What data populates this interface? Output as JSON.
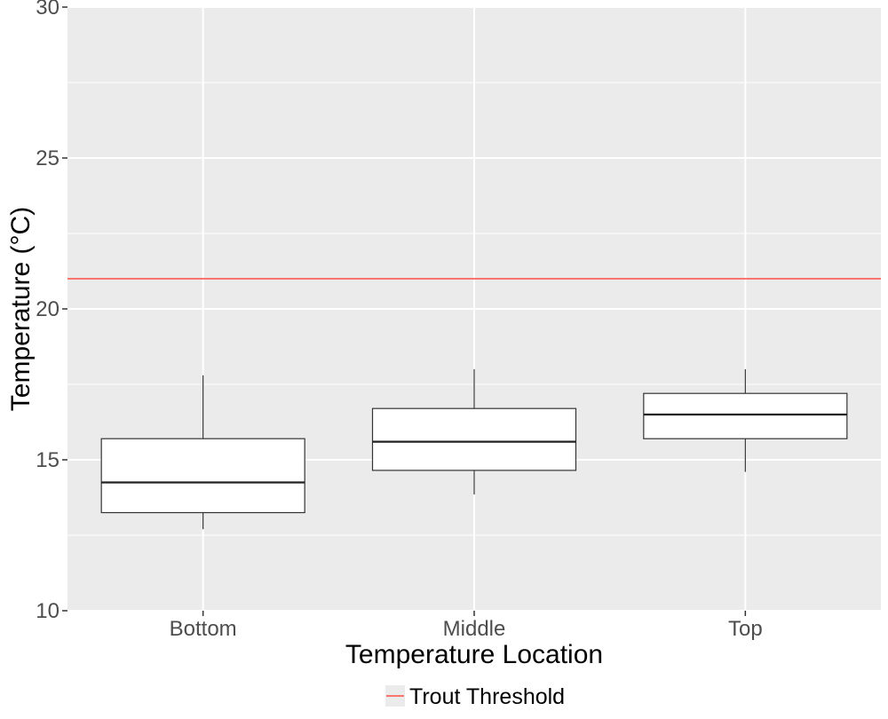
{
  "chart_data": {
    "type": "boxplot",
    "title": "",
    "xlabel": "Temperature Location",
    "ylabel": "Temperature (°C)",
    "ylim": [
      10,
      30
    ],
    "y_ticks": [
      "10",
      "15",
      "20",
      "25",
      "30"
    ],
    "grid": true,
    "categories": [
      "Bottom",
      "Middle",
      "Top"
    ],
    "boxes": [
      {
        "category": "Bottom",
        "whisker_low": 12.7,
        "q1": 13.25,
        "median": 14.25,
        "q3": 15.7,
        "whisker_high": 17.8
      },
      {
        "category": "Middle",
        "whisker_low": 13.85,
        "q1": 14.65,
        "median": 15.6,
        "q3": 16.7,
        "whisker_high": 18.0
      },
      {
        "category": "Top",
        "whisker_low": 14.6,
        "q1": 15.7,
        "median": 16.5,
        "q3": 17.2,
        "whisker_high": 18.0
      }
    ],
    "reference_line": {
      "name": "Trout Threshold",
      "y": 21,
      "color": "#F8766D"
    },
    "legend": {
      "position": "bottom",
      "items": [
        "Trout Threshold"
      ]
    },
    "colors": {
      "panel": "#EBEBEB",
      "grid": "#FFFFFF",
      "box_fill": "#FFFFFF",
      "box_stroke": "#333333"
    }
  }
}
